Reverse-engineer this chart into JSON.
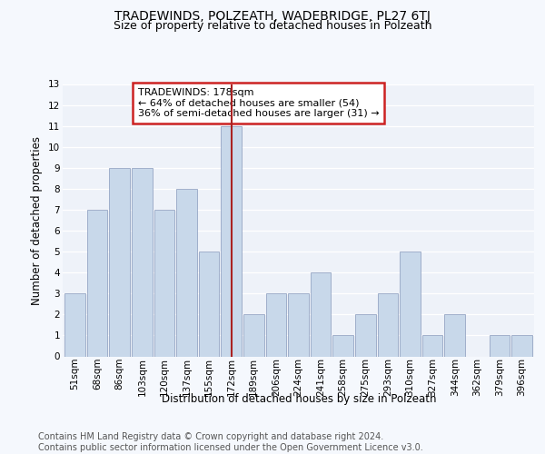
{
  "title": "TRADEWINDS, POLZEATH, WADEBRIDGE, PL27 6TJ",
  "subtitle": "Size of property relative to detached houses in Polzeath",
  "xlabel": "Distribution of detached houses by size in Polzeath",
  "ylabel": "Number of detached properties",
  "categories": [
    "51sqm",
    "68sqm",
    "86sqm",
    "103sqm",
    "120sqm",
    "137sqm",
    "155sqm",
    "172sqm",
    "189sqm",
    "206sqm",
    "224sqm",
    "241sqm",
    "258sqm",
    "275sqm",
    "293sqm",
    "310sqm",
    "327sqm",
    "344sqm",
    "362sqm",
    "379sqm",
    "396sqm"
  ],
  "values": [
    3,
    7,
    9,
    9,
    7,
    8,
    5,
    11,
    2,
    3,
    3,
    4,
    1,
    2,
    3,
    5,
    1,
    2,
    0,
    1,
    1
  ],
  "highlight_index": 7,
  "bar_color": "#c8d8ea",
  "highlight_line_color": "#aa2222",
  "annotation_text": "TRADEWINDS: 178sqm\n← 64% of detached houses are smaller (54)\n36% of semi-detached houses are larger (31) →",
  "annotation_box_color": "#ffffff",
  "annotation_box_edge": "#cc2222",
  "footer_text": "Contains HM Land Registry data © Crown copyright and database right 2024.\nContains public sector information licensed under the Open Government Licence v3.0.",
  "ylim": [
    0,
    13
  ],
  "yticks": [
    0,
    1,
    2,
    3,
    4,
    5,
    6,
    7,
    8,
    9,
    10,
    11,
    12,
    13
  ],
  "background_color": "#f5f8fd",
  "plot_bg_color": "#eef2f9",
  "grid_color": "#ffffff",
  "title_fontsize": 10,
  "subtitle_fontsize": 9,
  "label_fontsize": 8.5,
  "tick_fontsize": 7.5,
  "footer_fontsize": 7,
  "annot_fontsize": 8
}
